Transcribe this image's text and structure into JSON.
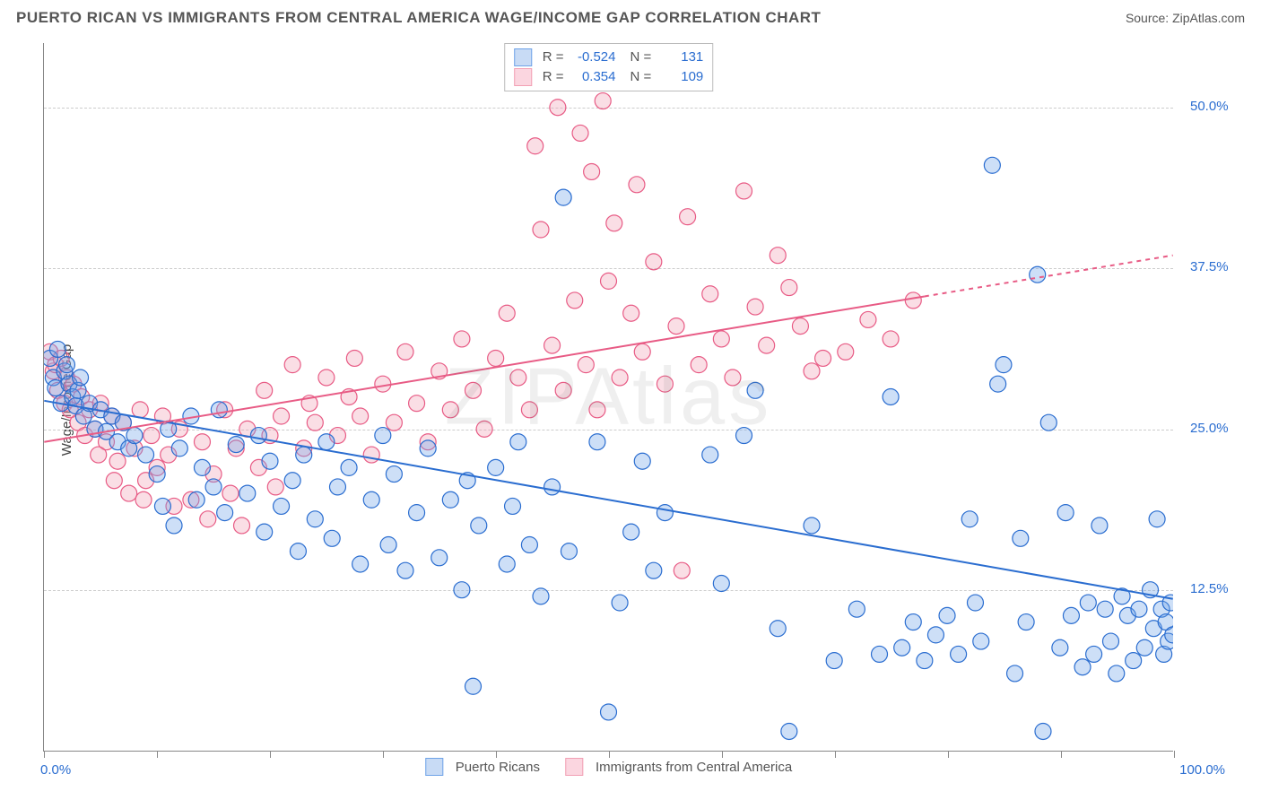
{
  "header": {
    "title": "PUERTO RICAN VS IMMIGRANTS FROM CENTRAL AMERICA WAGE/INCOME GAP CORRELATION CHART",
    "source": "Source: ZipAtlas.com"
  },
  "watermark": "ZIPAtlas",
  "chart": {
    "type": "scatter",
    "ylabel": "Wage/Income Gap",
    "xlim": [
      0,
      100
    ],
    "ylim": [
      0,
      55
    ],
    "background_color": "#ffffff",
    "grid_color": "#cccccc",
    "axis_color": "#888888",
    "tick_label_color": "#2a6dd0",
    "label_fontsize": 15,
    "xtick_positions": [
      0,
      10,
      20,
      30,
      40,
      50,
      60,
      70,
      80,
      90,
      100
    ],
    "xtick_labels": {
      "0": "0.0%",
      "100": "100.0%"
    },
    "ytick_positions": [
      12.5,
      25.0,
      37.5,
      50.0
    ],
    "ytick_labels": [
      "12.5%",
      "25.0%",
      "37.5%",
      "50.0%"
    ],
    "marker_radius": 9,
    "marker_stroke_width": 1.2,
    "marker_fill_opacity": 0.35,
    "trend_line_width": 2
  },
  "series": [
    {
      "id": "puerto_ricans",
      "label": "Puerto Ricans",
      "r": "-0.524",
      "n": "131",
      "fill_color": "#6fa3e8",
      "stroke_color": "#2a6dd0",
      "swatch_fill": "#c8dbf5",
      "swatch_stroke": "#6fa3e8",
      "trend": {
        "x1": 0,
        "y1": 27.2,
        "x2": 100,
        "y2": 11.8,
        "x_extent": 100
      },
      "points": [
        [
          0.5,
          30.5
        ],
        [
          0.8,
          29.0
        ],
        [
          1.0,
          28.2
        ],
        [
          1.2,
          31.2
        ],
        [
          1.5,
          27.0
        ],
        [
          1.8,
          29.5
        ],
        [
          2.0,
          30.0
        ],
        [
          2.2,
          28.5
        ],
        [
          2.5,
          27.5
        ],
        [
          2.8,
          26.8
        ],
        [
          3.0,
          28.0
        ],
        [
          3.2,
          29.0
        ],
        [
          3.5,
          26.0
        ],
        [
          4.0,
          27.0
        ],
        [
          4.5,
          25.0
        ],
        [
          5.0,
          26.5
        ],
        [
          5.5,
          24.8
        ],
        [
          6.0,
          26.0
        ],
        [
          6.5,
          24.0
        ],
        [
          7.0,
          25.5
        ],
        [
          7.5,
          23.5
        ],
        [
          8.0,
          24.5
        ],
        [
          9.0,
          23.0
        ],
        [
          10.0,
          21.5
        ],
        [
          10.5,
          19.0
        ],
        [
          11.0,
          25.0
        ],
        [
          11.5,
          17.5
        ],
        [
          12.0,
          23.5
        ],
        [
          13.0,
          26.0
        ],
        [
          13.5,
          19.5
        ],
        [
          14.0,
          22.0
        ],
        [
          15.0,
          20.5
        ],
        [
          15.5,
          26.5
        ],
        [
          16.0,
          18.5
        ],
        [
          17.0,
          23.8
        ],
        [
          18.0,
          20.0
        ],
        [
          19.0,
          24.5
        ],
        [
          19.5,
          17.0
        ],
        [
          20.0,
          22.5
        ],
        [
          21.0,
          19.0
        ],
        [
          22.0,
          21.0
        ],
        [
          22.5,
          15.5
        ],
        [
          23.0,
          23.0
        ],
        [
          24.0,
          18.0
        ],
        [
          25.0,
          24.0
        ],
        [
          25.5,
          16.5
        ],
        [
          26.0,
          20.5
        ],
        [
          27.0,
          22.0
        ],
        [
          28.0,
          14.5
        ],
        [
          29.0,
          19.5
        ],
        [
          30.0,
          24.5
        ],
        [
          30.5,
          16.0
        ],
        [
          31.0,
          21.5
        ],
        [
          32.0,
          14.0
        ],
        [
          33.0,
          18.5
        ],
        [
          34.0,
          23.5
        ],
        [
          35.0,
          15.0
        ],
        [
          36.0,
          19.5
        ],
        [
          37.0,
          12.5
        ],
        [
          37.5,
          21.0
        ],
        [
          38.0,
          5.0
        ],
        [
          38.5,
          17.5
        ],
        [
          40.0,
          22.0
        ],
        [
          41.0,
          14.5
        ],
        [
          41.5,
          19.0
        ],
        [
          42.0,
          24.0
        ],
        [
          43.0,
          16.0
        ],
        [
          44.0,
          12.0
        ],
        [
          45.0,
          20.5
        ],
        [
          46.0,
          43.0
        ],
        [
          46.5,
          15.5
        ],
        [
          49.0,
          24.0
        ],
        [
          50.0,
          3.0
        ],
        [
          51.0,
          11.5
        ],
        [
          52.0,
          17.0
        ],
        [
          53.0,
          22.5
        ],
        [
          54.0,
          14.0
        ],
        [
          55.0,
          18.5
        ],
        [
          59.0,
          23.0
        ],
        [
          60.0,
          13.0
        ],
        [
          62.0,
          24.5
        ],
        [
          63.0,
          28.0
        ],
        [
          65.0,
          9.5
        ],
        [
          66.0,
          1.5
        ],
        [
          68.0,
          17.5
        ],
        [
          70.0,
          7.0
        ],
        [
          72.0,
          11.0
        ],
        [
          74.0,
          7.5
        ],
        [
          75.0,
          27.5
        ],
        [
          76.0,
          8.0
        ],
        [
          78.0,
          7.0
        ],
        [
          80.0,
          10.5
        ],
        [
          81.0,
          7.5
        ],
        [
          82.0,
          18.0
        ],
        [
          83.0,
          8.5
        ],
        [
          84.0,
          45.5
        ],
        [
          85.0,
          30.0
        ],
        [
          86.0,
          6.0
        ],
        [
          87.0,
          10.0
        ],
        [
          88.0,
          37.0
        ],
        [
          88.5,
          1.5
        ],
        [
          89.0,
          25.5
        ],
        [
          90.0,
          8.0
        ],
        [
          90.5,
          18.5
        ],
        [
          91.0,
          10.5
        ],
        [
          92.0,
          6.5
        ],
        [
          92.5,
          11.5
        ],
        [
          93.0,
          7.5
        ],
        [
          93.5,
          17.5
        ],
        [
          94.0,
          11.0
        ],
        [
          94.5,
          8.5
        ],
        [
          95.0,
          6.0
        ],
        [
          95.5,
          12.0
        ],
        [
          96.0,
          10.5
        ],
        [
          96.5,
          7.0
        ],
        [
          97.0,
          11.0
        ],
        [
          97.5,
          8.0
        ],
        [
          98.0,
          12.5
        ],
        [
          98.3,
          9.5
        ],
        [
          98.6,
          18.0
        ],
        [
          99.0,
          11.0
        ],
        [
          99.2,
          7.5
        ],
        [
          99.4,
          10.0
        ],
        [
          99.6,
          8.5
        ],
        [
          99.8,
          11.5
        ],
        [
          100.0,
          9.0
        ],
        [
          82.5,
          11.5
        ],
        [
          84.5,
          28.5
        ],
        [
          86.5,
          16.5
        ],
        [
          79.0,
          9.0
        ],
        [
          77.0,
          10.0
        ]
      ]
    },
    {
      "id": "central_america",
      "label": "Immigrants from Central America",
      "r": "0.354",
      "n": "109",
      "fill_color": "#f2a0b4",
      "stroke_color": "#e85b85",
      "swatch_fill": "#fbd6e0",
      "swatch_stroke": "#f2a0b4",
      "trend": {
        "x1": 0,
        "y1": 24.0,
        "x2": 100,
        "y2": 38.5,
        "x_extent": 78
      },
      "points": [
        [
          0.5,
          31.0
        ],
        [
          0.8,
          29.5
        ],
        [
          1.0,
          30.0
        ],
        [
          1.2,
          28.0
        ],
        [
          1.5,
          30.5
        ],
        [
          1.8,
          27.0
        ],
        [
          2.0,
          29.0
        ],
        [
          2.3,
          26.5
        ],
        [
          2.6,
          28.5
        ],
        [
          3.0,
          25.5
        ],
        [
          3.3,
          27.5
        ],
        [
          3.6,
          24.5
        ],
        [
          4.0,
          26.5
        ],
        [
          4.5,
          25.0
        ],
        [
          5.0,
          27.0
        ],
        [
          5.5,
          24.0
        ],
        [
          6.0,
          26.0
        ],
        [
          6.5,
          22.5
        ],
        [
          7.0,
          25.5
        ],
        [
          7.5,
          20.0
        ],
        [
          8.0,
          23.5
        ],
        [
          8.5,
          26.5
        ],
        [
          9.0,
          21.0
        ],
        [
          9.5,
          24.5
        ],
        [
          10.0,
          22.0
        ],
        [
          10.5,
          26.0
        ],
        [
          11.0,
          23.0
        ],
        [
          12.0,
          25.0
        ],
        [
          13.0,
          19.5
        ],
        [
          14.0,
          24.0
        ],
        [
          15.0,
          21.5
        ],
        [
          16.0,
          26.5
        ],
        [
          17.0,
          23.5
        ],
        [
          17.5,
          17.5
        ],
        [
          18.0,
          25.0
        ],
        [
          19.0,
          22.0
        ],
        [
          19.5,
          28.0
        ],
        [
          20.0,
          24.5
        ],
        [
          21.0,
          26.0
        ],
        [
          22.0,
          30.0
        ],
        [
          23.0,
          23.5
        ],
        [
          23.5,
          27.0
        ],
        [
          24.0,
          25.5
        ],
        [
          25.0,
          29.0
        ],
        [
          26.0,
          24.5
        ],
        [
          27.0,
          27.5
        ],
        [
          27.5,
          30.5
        ],
        [
          28.0,
          26.0
        ],
        [
          29.0,
          23.0
        ],
        [
          30.0,
          28.5
        ],
        [
          31.0,
          25.5
        ],
        [
          32.0,
          31.0
        ],
        [
          33.0,
          27.0
        ],
        [
          34.0,
          24.0
        ],
        [
          35.0,
          29.5
        ],
        [
          36.0,
          26.5
        ],
        [
          37.0,
          32.0
        ],
        [
          38.0,
          28.0
        ],
        [
          39.0,
          25.0
        ],
        [
          40.0,
          30.5
        ],
        [
          41.0,
          34.0
        ],
        [
          42.0,
          29.0
        ],
        [
          43.0,
          26.5
        ],
        [
          44.0,
          40.5
        ],
        [
          45.0,
          31.5
        ],
        [
          45.5,
          50.0
        ],
        [
          46.0,
          28.0
        ],
        [
          47.0,
          35.0
        ],
        [
          47.5,
          48.0
        ],
        [
          48.0,
          30.0
        ],
        [
          48.5,
          45.0
        ],
        [
          49.0,
          26.5
        ],
        [
          50.0,
          36.5
        ],
        [
          50.5,
          41.0
        ],
        [
          51.0,
          29.0
        ],
        [
          52.0,
          34.0
        ],
        [
          52.5,
          44.0
        ],
        [
          53.0,
          31.0
        ],
        [
          54.0,
          38.0
        ],
        [
          55.0,
          28.5
        ],
        [
          56.0,
          33.0
        ],
        [
          57.0,
          41.5
        ],
        [
          58.0,
          30.0
        ],
        [
          59.0,
          35.5
        ],
        [
          60.0,
          32.0
        ],
        [
          61.0,
          29.0
        ],
        [
          62.0,
          43.5
        ],
        [
          63.0,
          34.5
        ],
        [
          64.0,
          31.5
        ],
        [
          65.0,
          38.5
        ],
        [
          67.0,
          33.0
        ],
        [
          69.0,
          30.5
        ],
        [
          47.2,
          52.0
        ],
        [
          49.5,
          50.5
        ],
        [
          43.5,
          47.0
        ],
        [
          56.5,
          14.0
        ],
        [
          20.5,
          20.5
        ],
        [
          11.5,
          19.0
        ],
        [
          14.5,
          18.0
        ],
        [
          16.5,
          20.0
        ],
        [
          8.8,
          19.5
        ],
        [
          6.2,
          21.0
        ],
        [
          4.8,
          23.0
        ],
        [
          77.0,
          35.0
        ],
        [
          71.0,
          31.0
        ],
        [
          73.0,
          33.5
        ],
        [
          75.0,
          32.0
        ],
        [
          68.0,
          29.5
        ],
        [
          66.0,
          36.0
        ]
      ]
    }
  ],
  "legend_top": {
    "r_label": "R =",
    "n_label": "N ="
  }
}
